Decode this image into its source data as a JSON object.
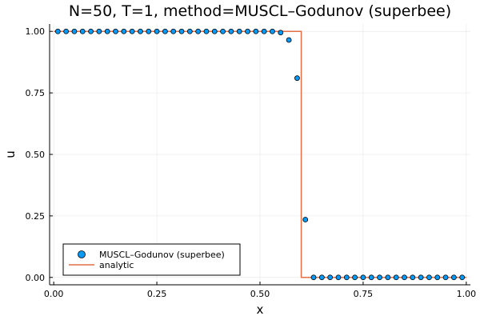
{
  "chart_data": {
    "type": "scatter",
    "title": "N=50, T=1, method=MUSCL–Godunov (superbee)",
    "xlabel": "x",
    "ylabel": "u",
    "xlim": [
      -0.01,
      1.01
    ],
    "ylim": [
      -0.03,
      1.03
    ],
    "xticks": [
      0.0,
      0.25,
      0.5,
      0.75,
      1.0
    ],
    "xtick_labels": [
      "0.00",
      "0.25",
      "0.50",
      "0.75",
      "1.00"
    ],
    "yticks": [
      0.0,
      0.25,
      0.5,
      0.75,
      1.0
    ],
    "ytick_labels": [
      "0.00",
      "0.25",
      "0.50",
      "0.75",
      "1.00"
    ],
    "grid": true,
    "legend_position": "bottom-left",
    "series": [
      {
        "name": "MUSCL–Godunov (superbee)",
        "kind": "scatter",
        "color": "#009AFA",
        "x": [
          0.01,
          0.03,
          0.05,
          0.07,
          0.09,
          0.11,
          0.13,
          0.15,
          0.17,
          0.19,
          0.21,
          0.23,
          0.25,
          0.27,
          0.29,
          0.31,
          0.33,
          0.35,
          0.37,
          0.39,
          0.41,
          0.43,
          0.45,
          0.47,
          0.49,
          0.51,
          0.53,
          0.55,
          0.57,
          0.59,
          0.61,
          0.63,
          0.65,
          0.67,
          0.69,
          0.71,
          0.73,
          0.75,
          0.77,
          0.79,
          0.81,
          0.83,
          0.85,
          0.87,
          0.89,
          0.91,
          0.93,
          0.95,
          0.97,
          0.99
        ],
        "y": [
          1,
          1,
          1,
          1,
          1,
          1,
          1,
          1,
          1,
          1,
          1,
          1,
          1,
          1,
          1,
          1,
          1,
          1,
          1,
          1,
          1,
          1,
          1,
          1,
          1,
          1,
          1,
          0.995,
          0.965,
          0.81,
          0.235,
          0,
          0,
          0,
          0,
          0,
          0,
          0,
          0,
          0,
          0,
          0,
          0,
          0,
          0,
          0,
          0,
          0,
          0,
          0
        ]
      },
      {
        "name": "analytic",
        "kind": "line",
        "color": "#E26F46",
        "x": [
          0.0,
          0.6,
          0.6,
          1.0
        ],
        "y": [
          1,
          1,
          0,
          0
        ]
      }
    ]
  }
}
